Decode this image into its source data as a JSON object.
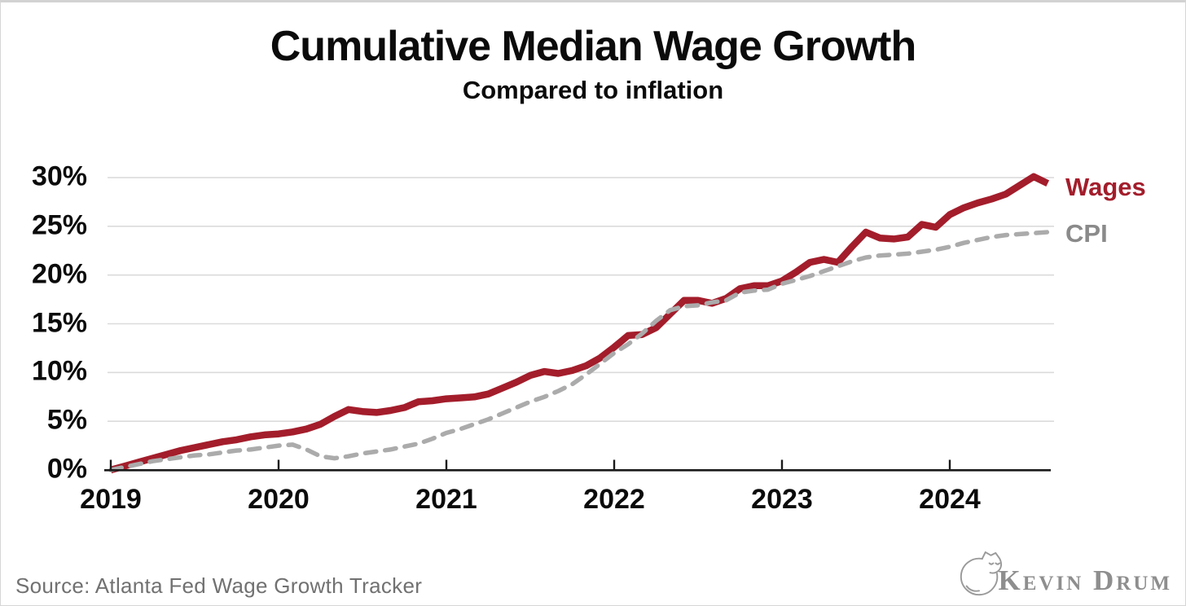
{
  "page": {
    "title": "Cumulative Median Wage Growth",
    "subtitle": "Compared to inflation"
  },
  "source_note": "Source: Atlanta Fed Wage Growth Tracker",
  "logo": {
    "wordmark": "Kevin Drum",
    "icon": "curled-cat"
  },
  "colors": {
    "wages_line": "#A31D2B",
    "cpi_line": "#ABABAB",
    "wages_label": "#A31D2B",
    "cpi_label": "#8A8A8A",
    "grid": "#DBDBDB",
    "axis": "#1a1a1a",
    "source_text": "#717171",
    "logo_gray": "#8e8e8e"
  },
  "chart_data": {
    "type": "line",
    "title": "Cumulative Median Wage Growth",
    "subtitle": "Compared to inflation",
    "x_unit": "month",
    "x_start": "2019-01",
    "x_end": "2024-08",
    "x_interval": "monthly",
    "x_ticks": [
      "2019",
      "2020",
      "2021",
      "2022",
      "2023",
      "2024"
    ],
    "y_ticks": [
      "0%",
      "5%",
      "10%",
      "15%",
      "20%",
      "25%",
      "30%"
    ],
    "y_tick_values": [
      0,
      5,
      10,
      15,
      20,
      25,
      30
    ],
    "ylim": [
      0,
      31.5
    ],
    "grid": "horizontal-only",
    "legend_position": "end-of-line-labels-right",
    "series": [
      {
        "name": "Wages",
        "style": "solid",
        "color": "#A31D2B",
        "values": [
          0.0,
          0.4,
          0.8,
          1.2,
          1.6,
          2.0,
          2.3,
          2.6,
          2.9,
          3.1,
          3.4,
          3.6,
          3.7,
          3.9,
          4.2,
          4.7,
          5.5,
          6.2,
          6.0,
          5.9,
          6.1,
          6.4,
          7.0,
          7.1,
          7.3,
          7.4,
          7.5,
          7.8,
          8.4,
          9.0,
          9.7,
          10.1,
          9.9,
          10.2,
          10.7,
          11.5,
          12.6,
          13.8,
          13.9,
          14.6,
          16.0,
          17.4,
          17.4,
          17.1,
          17.6,
          18.6,
          18.9,
          18.9,
          19.4,
          20.3,
          21.3,
          21.6,
          21.3,
          22.9,
          24.4,
          23.8,
          23.7,
          23.9,
          25.2,
          24.9,
          26.2,
          26.9,
          27.4,
          27.8,
          28.3,
          29.2,
          30.1,
          29.4
        ]
      },
      {
        "name": "CPI",
        "style": "dashed",
        "color": "#ABABAB",
        "values": [
          0.0,
          0.3,
          0.6,
          0.9,
          1.1,
          1.3,
          1.5,
          1.6,
          1.8,
          2.0,
          2.1,
          2.3,
          2.5,
          2.6,
          2.1,
          1.4,
          1.2,
          1.4,
          1.7,
          1.9,
          2.1,
          2.4,
          2.7,
          3.2,
          3.8,
          4.2,
          4.7,
          5.2,
          5.8,
          6.4,
          7.0,
          7.5,
          8.1,
          8.8,
          9.8,
          10.9,
          12.0,
          12.9,
          14.0,
          15.3,
          16.4,
          16.8,
          16.9,
          17.2,
          17.4,
          18.2,
          18.4,
          18.5,
          19.1,
          19.5,
          19.9,
          20.4,
          20.9,
          21.4,
          21.8,
          22.0,
          22.1,
          22.2,
          22.4,
          22.6,
          22.9,
          23.3,
          23.6,
          23.9,
          24.1,
          24.2,
          24.3,
          24.4
        ]
      }
    ]
  }
}
